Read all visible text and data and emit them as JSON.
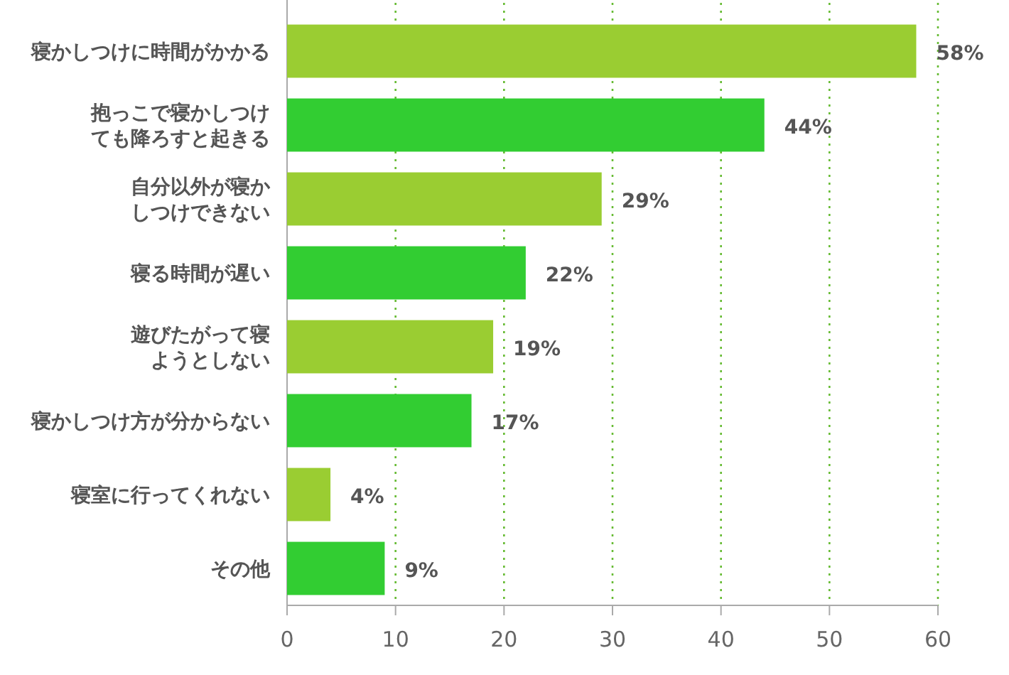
{
  "chart_data": {
    "type": "bar",
    "orientation": "horizontal",
    "categories": [
      "寝かしつけに時間がかかる",
      "抱っこで寝かしつけても降ろすと起きる",
      "自分以外が寝かしつけできない",
      "寝る時間が遅い",
      "遊びたがって寝ようとしない",
      "寝かしつけ方が分からない",
      "寝室に行ってくれない",
      "その他"
    ],
    "values": [
      58,
      44,
      29,
      22,
      19,
      17,
      4,
      9
    ],
    "colors": [
      "#9acd32",
      "#32cd32",
      "#9acd32",
      "#32cd32",
      "#9acd32",
      "#32cd32",
      "#9acd32",
      "#32cd32"
    ],
    "value_labels": [
      "58%",
      "44%",
      "29%",
      "22%",
      "19%",
      "17%",
      "4%",
      "9%"
    ],
    "xlim": [
      0,
      60
    ],
    "xticks": [
      0,
      10,
      20,
      30,
      40,
      50,
      60
    ],
    "grid": "x"
  }
}
